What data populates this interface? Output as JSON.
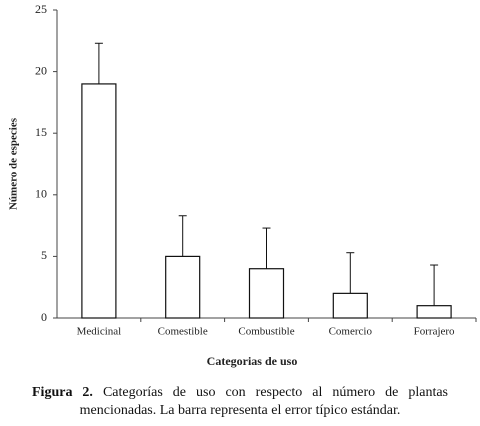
{
  "chart_data": {
    "type": "bar",
    "x_label": "Categorias de uso",
    "y_label": "Número de especies",
    "categories": [
      "Medicinal",
      "Comestible",
      "Combustible",
      "Comercio",
      "Forrajero"
    ],
    "values": [
      19,
      5,
      4,
      2,
      1
    ],
    "errors": [
      3.3,
      3.3,
      3.3,
      3.3,
      3.3
    ],
    "color": "#ffffff",
    "ylim": [
      0,
      25
    ],
    "yticks": [
      0,
      5,
      10,
      15,
      20,
      25
    ],
    "grid": false
  },
  "caption": {
    "label": "Figura 2.",
    "text": "Categorías de uso con respecto al número de plantas mencionadas. La barra representa el error típico estándar."
  }
}
